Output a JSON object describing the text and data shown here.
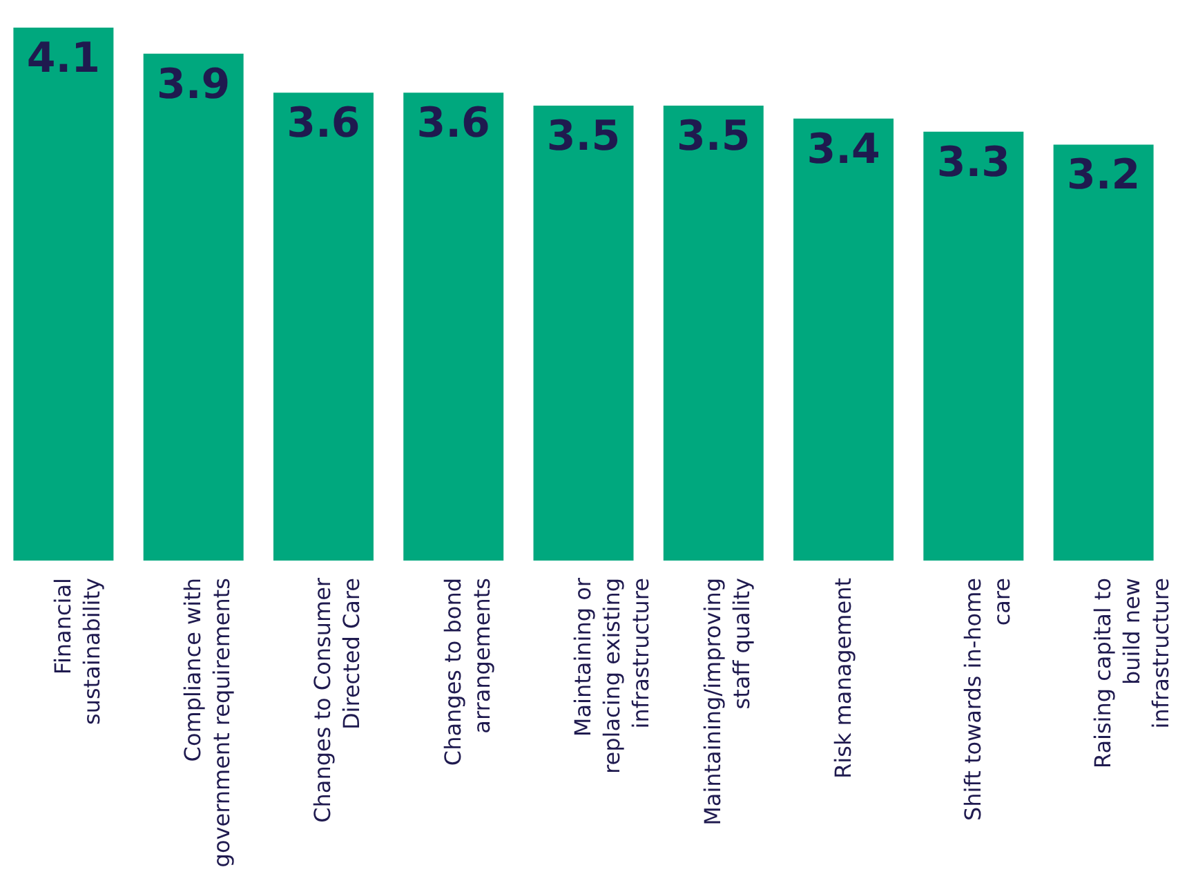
{
  "chart_data": {
    "type": "bar",
    "categories": [
      "Financial sustainability",
      "Compliance with government requirements",
      "Changes to Consumer Directed Care",
      "Changes to bond arrangements",
      "Maintaining or replacing existing infrastructure",
      "Maintaining/improving staff quality",
      "Risk management",
      "Shift towards in-home care",
      "Raising capital to build new infrastructure"
    ],
    "values": [
      4.1,
      3.9,
      3.6,
      3.6,
      3.5,
      3.5,
      3.4,
      3.3,
      3.2
    ],
    "color": "#00a87e",
    "data_labels": true
  }
}
